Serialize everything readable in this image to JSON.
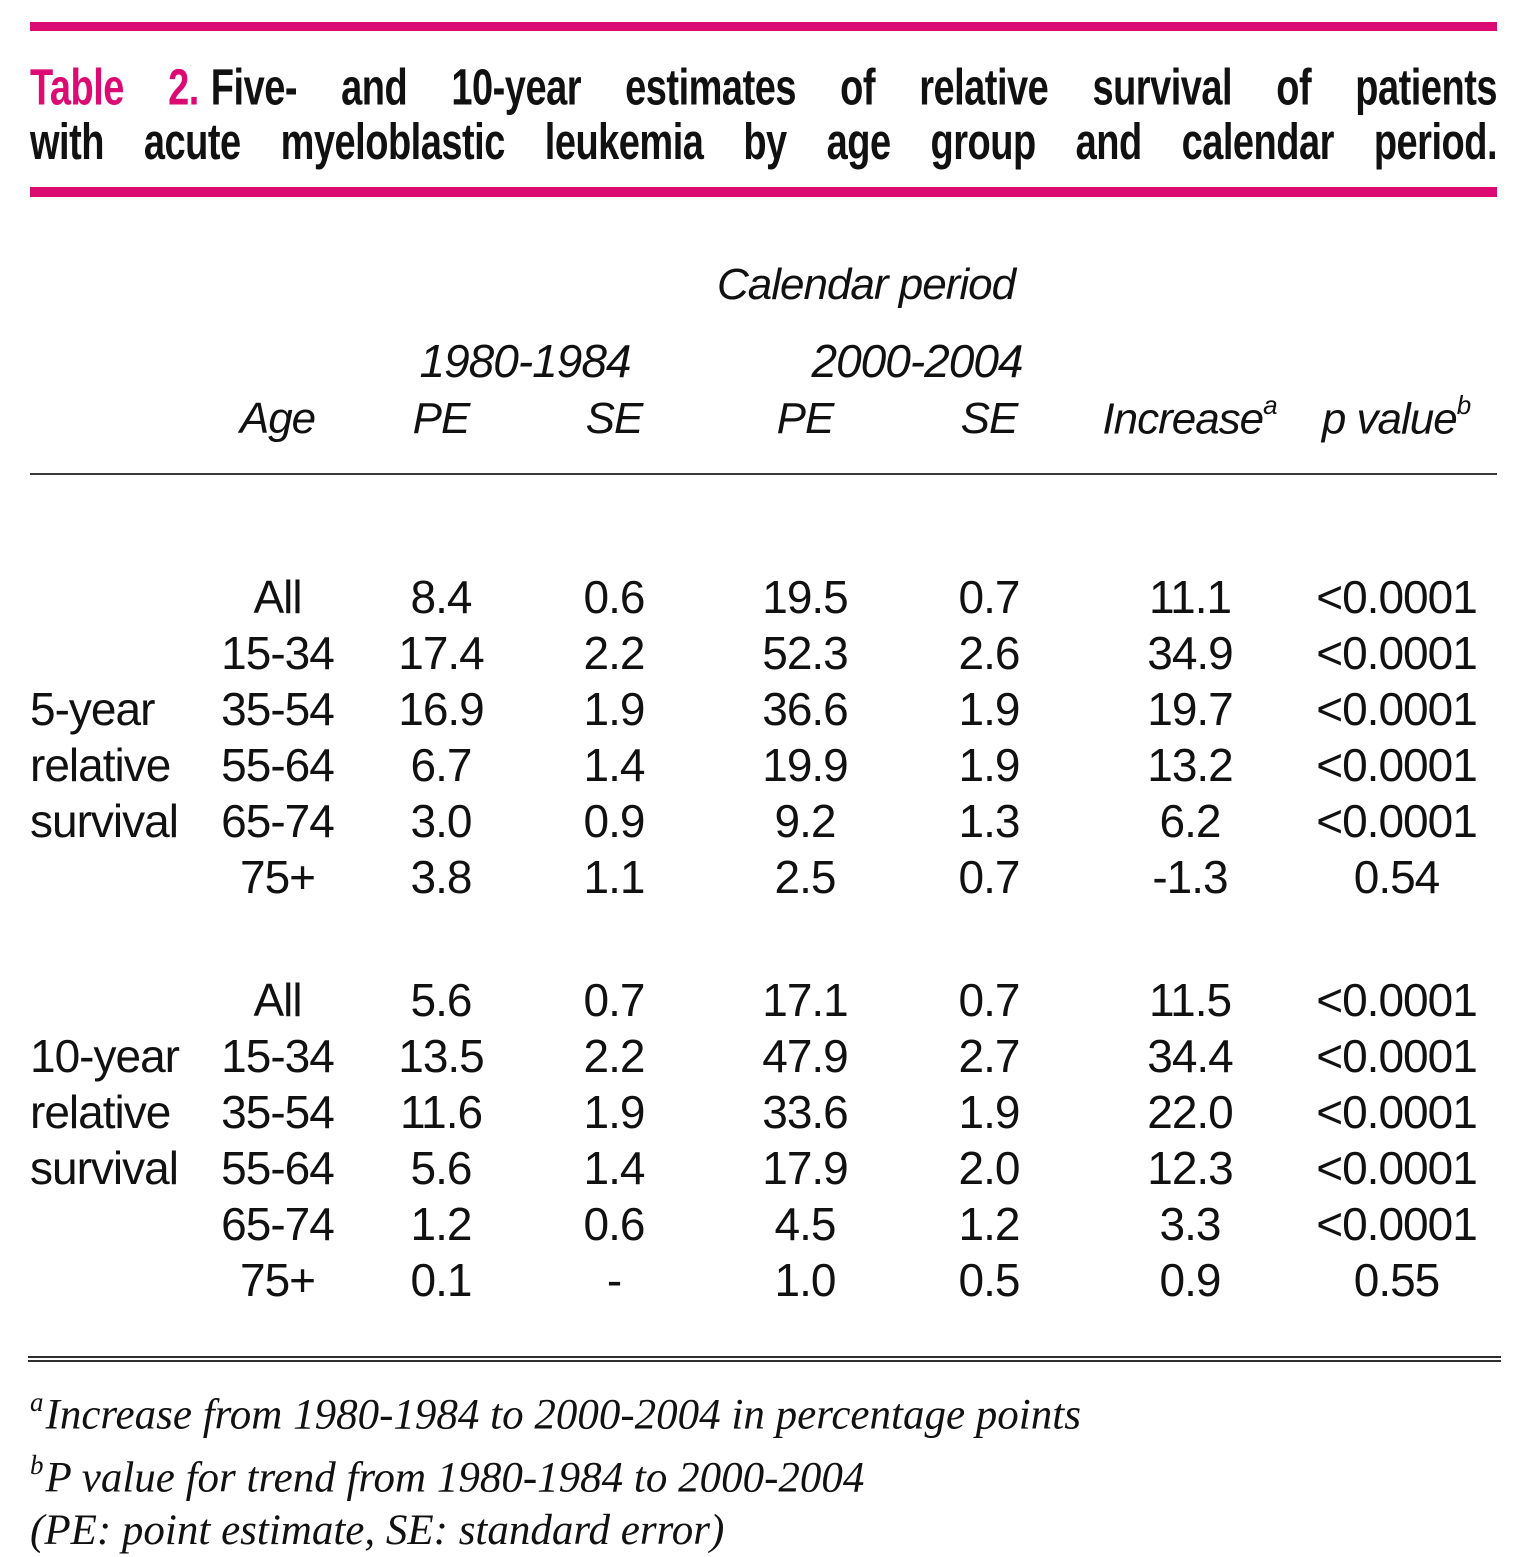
{
  "colors": {
    "accent": "#DC0A73",
    "text": "#111111",
    "rule": "#3a3a3a"
  },
  "title": {
    "number": "Table 2.",
    "caption_line1": "Five- and 10-year estimates of relative survival of patients",
    "caption_line2": "with acute myeloblastic leukemia by age group and calendar period."
  },
  "header": {
    "group_title": "Calendar period",
    "periods": [
      "1980-1984",
      "2000-2004"
    ],
    "age": "Age",
    "pe": "PE",
    "se": "SE",
    "increase": "Increase",
    "increase_sup": "a",
    "p_value": "p value",
    "p_value_sup": "b"
  },
  "table": {
    "column_keys": [
      "row_group",
      "age",
      "pe_1980",
      "se_1980",
      "pe_2000",
      "se_2000",
      "increase",
      "p_value"
    ],
    "blocks": [
      {
        "group_label": "5-year relative survival",
        "rows": [
          [
            "",
            "All",
            "8.4",
            "0.6",
            "19.5",
            "0.7",
            "11.1",
            "<0.0001"
          ],
          [
            "",
            "15-34",
            "17.4",
            "2.2",
            "52.3",
            "2.6",
            "34.9",
            "<0.0001"
          ],
          [
            "5-year",
            "35-54",
            "16.9",
            "1.9",
            "36.6",
            "1.9",
            "19.7",
            "<0.0001"
          ],
          [
            "relative",
            "55-64",
            "6.7",
            "1.4",
            "19.9",
            "1.9",
            "13.2",
            "<0.0001"
          ],
          [
            "survival",
            "65-74",
            "3.0",
            "0.9",
            "9.2",
            "1.3",
            "6.2",
            "<0.0001"
          ],
          [
            "",
            "75+",
            "3.8",
            "1.1",
            "2.5",
            "0.7",
            "-1.3",
            "0.54"
          ]
        ]
      },
      {
        "group_label": "10-year relative survival",
        "rows": [
          [
            "",
            "All",
            "5.6",
            "0.7",
            "17.1",
            "0.7",
            "11.5",
            "<0.0001"
          ],
          [
            "10-year",
            "15-34",
            "13.5",
            "2.2",
            "47.9",
            "2.7",
            "34.4",
            "<0.0001"
          ],
          [
            "relative",
            "35-54",
            "11.6",
            "1.9",
            "33.6",
            "1.9",
            "22.0",
            "<0.0001"
          ],
          [
            "survival",
            "55-64",
            "5.6",
            "1.4",
            "17.9",
            "2.0",
            "12.3",
            "<0.0001"
          ],
          [
            "",
            "65-74",
            "1.2",
            "0.6",
            "4.5",
            "1.2",
            "3.3",
            "<0.0001"
          ],
          [
            "",
            "75+",
            "0.1",
            "-",
            "1.0",
            "0.5",
            "0.9",
            "0.55"
          ]
        ]
      }
    ]
  },
  "footnotes": [
    {
      "sup": "a",
      "text": "Increase from 1980-1984 to 2000-2004 in percentage points"
    },
    {
      "sup": "b",
      "text": "P value for trend from 1980-1984 to 2000-2004"
    },
    {
      "sup": "",
      "text": "(PE: point estimate, SE: standard error)"
    }
  ]
}
